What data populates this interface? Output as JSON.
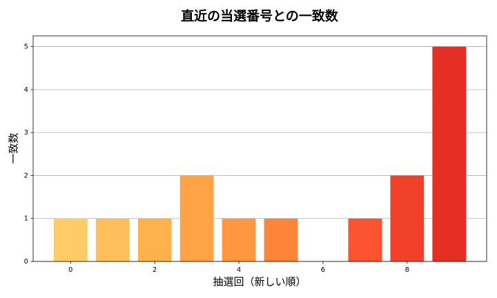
{
  "chart_data": {
    "type": "bar",
    "title": "直近の当選番号との一致数",
    "x_label": "抽選回（新しい順）",
    "y_label": "一致数",
    "x": [
      0,
      1,
      2,
      3,
      4,
      5,
      6,
      7,
      8,
      9
    ],
    "values": [
      1,
      1,
      1,
      2,
      1,
      1,
      0,
      1,
      2,
      5
    ],
    "colors": [
      "#fecb67",
      "#febf5a",
      "#feb24c",
      "#fea446",
      "#fd9740",
      "#fd853a",
      "#fc6f33",
      "#fb532f",
      "#f2412a",
      "#e52e24"
    ],
    "bar_width": 0.8,
    "xlim": [
      -0.89,
      9.89
    ],
    "xticks": [
      0,
      2,
      4,
      6,
      8
    ],
    "ylim": [
      0,
      5.25
    ],
    "yticks": [
      0,
      1,
      2,
      3,
      4,
      5
    ],
    "grid": true
  }
}
